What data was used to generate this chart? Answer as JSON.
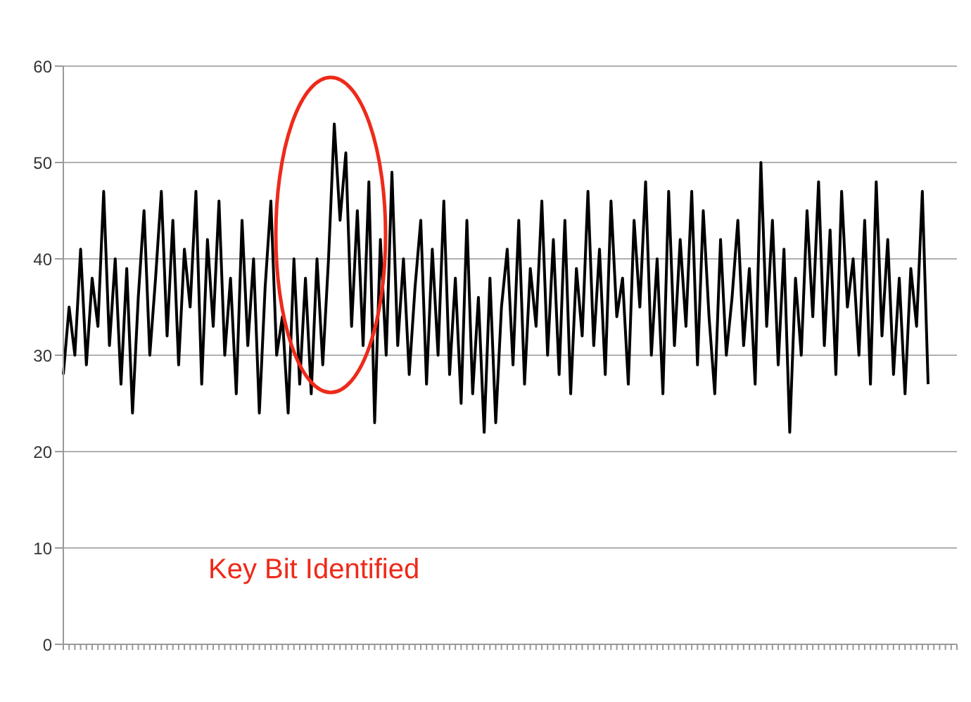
{
  "chart_data": {
    "type": "line",
    "categories": [
      null,
      null,
      null,
      null,
      null,
      null,
      null,
      null,
      null,
      null,
      null,
      null,
      null,
      null,
      null,
      null,
      null,
      null,
      null,
      null,
      null,
      null,
      null,
      null,
      null,
      null,
      null,
      null,
      null,
      null,
      null,
      null,
      null,
      null,
      null,
      null,
      null,
      null,
      null,
      null,
      null,
      null,
      null,
      null,
      null,
      null,
      null,
      null,
      null,
      null,
      null,
      null,
      null,
      null,
      null,
      null,
      null,
      null,
      null,
      null,
      null,
      null,
      null,
      null,
      null,
      null,
      null,
      null,
      null,
      null,
      null,
      null,
      null,
      null,
      null,
      null,
      null,
      null,
      null,
      null,
      null,
      null,
      null,
      null,
      null,
      null,
      null,
      null,
      null,
      null,
      null,
      null,
      null,
      null,
      null,
      null,
      null,
      null,
      null,
      null,
      null,
      null,
      null,
      null,
      null,
      null,
      null,
      null,
      null,
      null,
      null,
      null,
      null,
      null,
      null,
      null,
      null,
      null,
      null,
      null,
      null,
      null,
      null,
      null,
      null,
      null,
      null,
      null,
      null,
      null,
      null,
      null,
      null,
      null,
      null,
      null,
      null,
      null,
      null,
      null,
      null,
      null,
      null,
      null,
      null,
      null,
      null,
      null,
      null,
      null,
      null,
      null,
      null,
      null,
      null,
      null
    ],
    "values": [
      28,
      35,
      30,
      41,
      29,
      38,
      33,
      47,
      31,
      40,
      27,
      39,
      24,
      36,
      45,
      30,
      38,
      47,
      32,
      44,
      29,
      41,
      35,
      47,
      27,
      42,
      33,
      46,
      30,
      38,
      26,
      44,
      31,
      40,
      24,
      37,
      46,
      30,
      34,
      24,
      40,
      27,
      38,
      26,
      40,
      29,
      40,
      54,
      44,
      51,
      33,
      45,
      31,
      48,
      23,
      42,
      30,
      49,
      31,
      40,
      28,
      37,
      44,
      27,
      41,
      30,
      46,
      28,
      38,
      25,
      44,
      26,
      36,
      22,
      38,
      23,
      35,
      41,
      29,
      44,
      27,
      39,
      33,
      46,
      30,
      42,
      28,
      44,
      26,
      39,
      32,
      47,
      31,
      41,
      28,
      46,
      34,
      38,
      27,
      44,
      35,
      48,
      30,
      40,
      26,
      47,
      31,
      42,
      33,
      47,
      29,
      45,
      34,
      26,
      42,
      30,
      36,
      44,
      31,
      39,
      27,
      50,
      33,
      44,
      29,
      41,
      22,
      38,
      30,
      45,
      34,
      48,
      31,
      43,
      28,
      47,
      35,
      40,
      30,
      44,
      27,
      48,
      32,
      42,
      28,
      38,
      26,
      39,
      33,
      47,
      27,
      null,
      null,
      null,
      null,
      null
    ],
    "color": "#000000",
    "ylim": [
      0,
      60
    ],
    "yticks": [
      0,
      10,
      20,
      30,
      40,
      50,
      60
    ],
    "grid": "y",
    "marker": "none",
    "line_style": "solid",
    "annotations": [
      "Key Bit Identified"
    ]
  }
}
